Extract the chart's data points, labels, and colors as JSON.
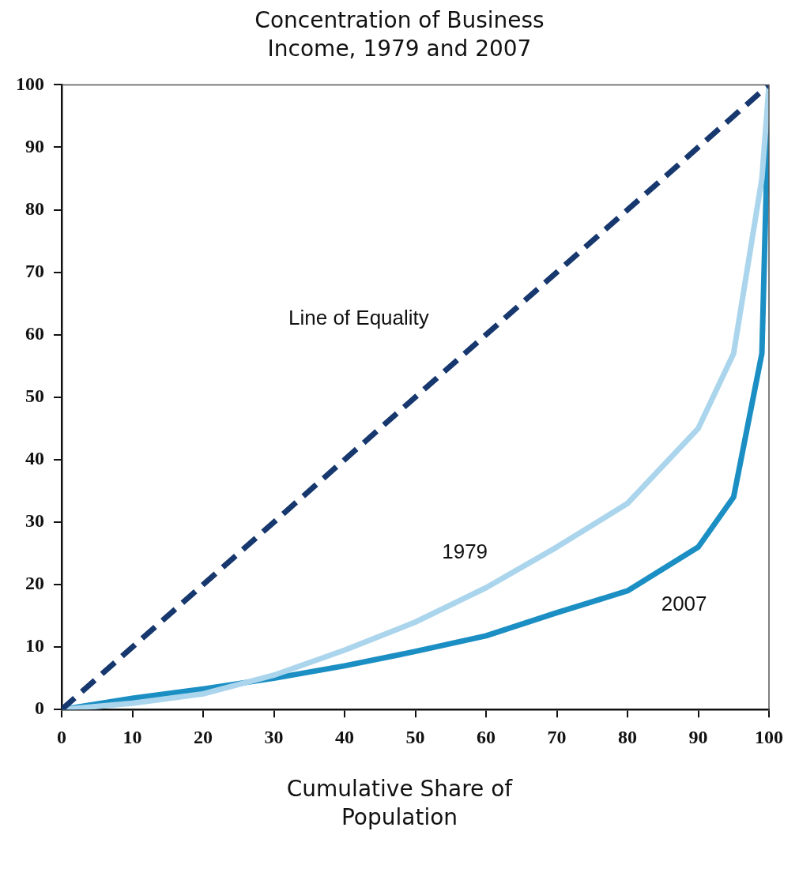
{
  "chart_data": {
    "type": "line",
    "title": "Concentration of Business Income,  1979 and 2007",
    "xlabel": "Cumulative Share of Population",
    "xlim": [
      0,
      100
    ],
    "xticks": [
      0,
      10,
      20,
      30,
      40,
      50,
      60,
      70,
      80,
      90,
      100
    ],
    "ylim": [
      0,
      100
    ],
    "yticks": [
      0,
      10,
      20,
      30,
      40,
      50,
      60,
      70,
      80,
      90,
      100
    ],
    "grid": false,
    "legend": false,
    "marker": "none",
    "series": [
      {
        "name": "Line of Equality",
        "color": "#17386e",
        "line_style": "dashed",
        "x": [
          0,
          100
        ],
        "values": [
          0,
          100
        ]
      },
      {
        "name": "1979",
        "color": "#aad5ec",
        "line_style": "solid",
        "x": [
          0,
          10,
          20,
          30,
          40,
          50,
          60,
          70,
          80,
          90,
          95,
          99,
          100
        ],
        "values": [
          0,
          1,
          2.5,
          5.5,
          9.5,
          14,
          19.5,
          26,
          33,
          45,
          57,
          85,
          100
        ]
      },
      {
        "name": "2007",
        "color": "#1b8fc3",
        "line_style": "solid",
        "x": [
          0,
          10,
          20,
          30,
          40,
          50,
          60,
          70,
          80,
          90,
          95,
          99,
          100
        ],
        "values": [
          0,
          1.8,
          3.3,
          5,
          7,
          9.3,
          11.8,
          15.5,
          19,
          26,
          34,
          57,
          100
        ]
      }
    ]
  }
}
